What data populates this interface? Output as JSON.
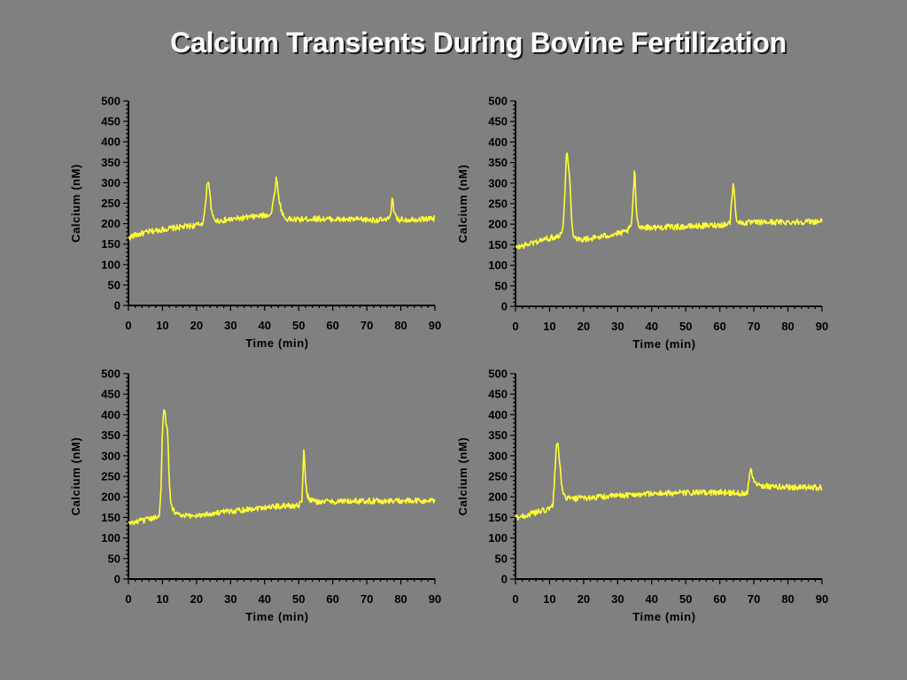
{
  "slide": {
    "title": "Calcium Transients During Bovine Fertilization"
  },
  "chart_data": [
    {
      "type": "line",
      "xlabel": "Time (min)",
      "ylabel": "Calcium (nM)",
      "xlim": [
        0,
        90
      ],
      "ylim": [
        0,
        500
      ],
      "xticks": [
        0,
        10,
        20,
        30,
        40,
        50,
        60,
        70,
        80,
        90
      ],
      "yticks": [
        0,
        50,
        100,
        150,
        200,
        250,
        300,
        350,
        400,
        450,
        500
      ],
      "grid": false,
      "series": [
        {
          "color": "#ffff33",
          "x": [
            0,
            2,
            4,
            6,
            8,
            10,
            12,
            14,
            16,
            18,
            20,
            21,
            22,
            22.5,
            23,
            23.5,
            24,
            24.5,
            25,
            26,
            28,
            30,
            32,
            34,
            36,
            38,
            40,
            41,
            42,
            43,
            43.5,
            44,
            45,
            46,
            48,
            50,
            52,
            54,
            56,
            58,
            60,
            62,
            64,
            66,
            68,
            70,
            72,
            74,
            76,
            77,
            77.5,
            78,
            79,
            80,
            82,
            84,
            86,
            88,
            90
          ],
          "y": [
            165,
            172,
            176,
            180,
            183,
            186,
            188,
            190,
            192,
            194,
            196,
            198,
            205,
            235,
            290,
            310,
            265,
            225,
            212,
            207,
            208,
            210,
            212,
            214,
            216,
            218,
            220,
            222,
            225,
            280,
            318,
            270,
            230,
            212,
            210,
            210,
            211,
            212,
            212,
            211,
            211,
            210,
            210,
            210,
            210,
            209,
            209,
            209,
            208,
            225,
            265,
            225,
            209,
            210,
            210,
            211,
            211,
            212,
            212
          ]
        }
      ]
    },
    {
      "type": "line",
      "xlabel": "Time (min)",
      "ylabel": "Calcium (nM)",
      "xlim": [
        0,
        90
      ],
      "ylim": [
        0,
        500
      ],
      "xticks": [
        0,
        10,
        20,
        30,
        40,
        50,
        60,
        70,
        80,
        90
      ],
      "yticks": [
        0,
        50,
        100,
        150,
        200,
        250,
        300,
        350,
        400,
        450,
        500
      ],
      "grid": false,
      "series": [
        {
          "color": "#ffff33",
          "x": [
            0,
            2,
            4,
            6,
            8,
            10,
            12,
            13,
            14,
            14.5,
            15,
            15.5,
            16,
            16.5,
            17,
            18,
            20,
            22,
            24,
            26,
            28,
            30,
            32,
            33,
            34,
            34.5,
            35,
            35.5,
            36,
            37,
            40,
            45,
            50,
            55,
            60,
            62,
            63,
            63.5,
            64,
            64.5,
            65,
            66,
            70,
            75,
            80,
            85,
            90
          ],
          "y": [
            142,
            147,
            152,
            157,
            162,
            166,
            170,
            175,
            190,
            280,
            385,
            345,
            300,
            205,
            175,
            165,
            163,
            165,
            168,
            171,
            174,
            177,
            180,
            185,
            195,
            260,
            335,
            235,
            200,
            193,
            192,
            193,
            194,
            196,
            198,
            200,
            205,
            260,
            305,
            245,
            210,
            203,
            204,
            205,
            205,
            206,
            207
          ]
        }
      ]
    },
    {
      "type": "line",
      "xlabel": "Time (min)",
      "ylabel": "Calcium (nM)",
      "xlim": [
        0,
        90
      ],
      "ylim": [
        0,
        500
      ],
      "xticks": [
        0,
        10,
        20,
        30,
        40,
        50,
        60,
        70,
        80,
        90
      ],
      "yticks": [
        0,
        50,
        100,
        150,
        200,
        250,
        300,
        350,
        400,
        450,
        500
      ],
      "grid": false,
      "series": [
        {
          "color": "#ffff33",
          "x": [
            0,
            2,
            4,
            6,
            8,
            9,
            9.5,
            10,
            10.5,
            11,
            11.5,
            12,
            12.5,
            13,
            14,
            16,
            20,
            25,
            30,
            35,
            40,
            45,
            48,
            50,
            51,
            51.5,
            52,
            52.5,
            53,
            54,
            56,
            60,
            65,
            70,
            75,
            80,
            85,
            90
          ],
          "y": [
            135,
            139,
            142,
            145,
            149,
            158,
            200,
            370,
            418,
            385,
            355,
            240,
            185,
            172,
            160,
            153,
            155,
            160,
            165,
            170,
            175,
            178,
            178,
            180,
            190,
            320,
            245,
            205,
            195,
            190,
            188,
            189,
            189,
            190,
            190,
            190,
            190,
            190
          ]
        }
      ]
    },
    {
      "type": "line",
      "xlabel": "Time (min)",
      "ylabel": "Calcium (nM)",
      "xlim": [
        0,
        90
      ],
      "ylim": [
        0,
        500
      ],
      "xticks": [
        0,
        10,
        20,
        30,
        40,
        50,
        60,
        70,
        80,
        90
      ],
      "yticks": [
        0,
        50,
        100,
        150,
        200,
        250,
        300,
        350,
        400,
        450,
        500
      ],
      "grid": false,
      "series": [
        {
          "color": "#ffff33",
          "x": [
            0,
            2,
            4,
            6,
            8,
            10,
            11,
            11.5,
            12,
            12.5,
            13,
            13.5,
            14,
            15,
            17,
            20,
            25,
            30,
            35,
            40,
            45,
            50,
            55,
            60,
            65,
            67,
            68,
            68.5,
            69,
            69.5,
            70,
            71,
            72,
            75,
            80,
            85,
            90
          ],
          "y": [
            150,
            153,
            157,
            162,
            166,
            170,
            180,
            250,
            325,
            330,
            285,
            225,
            205,
            198,
            195,
            197,
            200,
            203,
            206,
            208,
            209,
            210,
            210,
            211,
            210,
            208,
            210,
            240,
            270,
            255,
            240,
            232,
            228,
            225,
            224,
            223,
            222
          ]
        }
      ]
    }
  ]
}
